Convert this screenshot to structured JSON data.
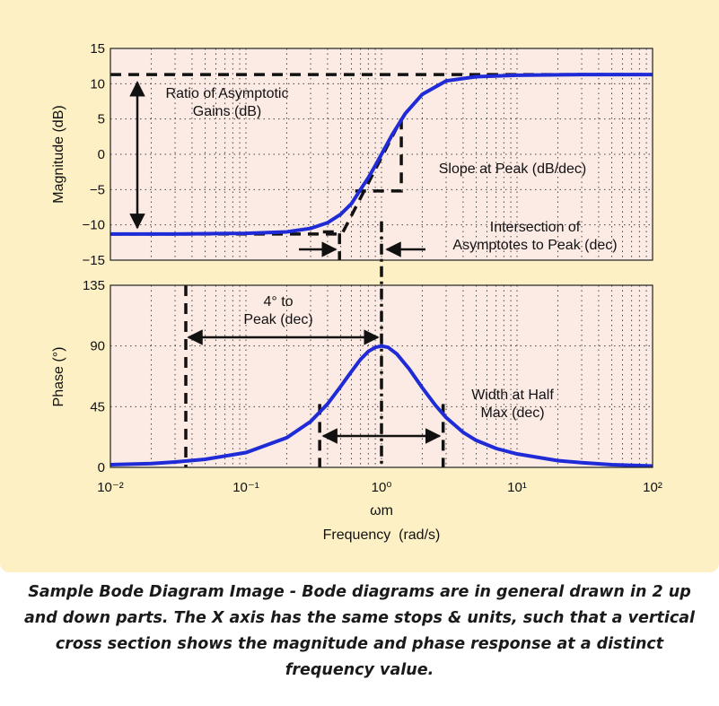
{
  "colors": {
    "panel_background": "#fdf0c4",
    "plot_background": "#fcebe4",
    "curve": "#1f2bd6",
    "asymptote": "#111111"
  },
  "chart_data": [
    {
      "type": "line",
      "panel": "magnitude",
      "xscale": "log",
      "xlim": [
        0.01,
        100
      ],
      "ylim": [
        -15,
        15
      ],
      "yticks": [
        15,
        10,
        5,
        0,
        -5,
        -10,
        -15
      ],
      "ytick_labels": [
        "15",
        "10",
        "5",
        "0",
        "−5",
        "−10",
        "−15"
      ],
      "ylabel": "Magnitude (dB)",
      "grid": true,
      "curve": {
        "x": [
          0.01,
          0.03,
          0.1,
          0.2,
          0.3,
          0.4,
          0.5,
          0.6,
          0.7,
          0.8,
          0.9,
          1.0,
          1.2,
          1.5,
          2,
          3,
          5,
          10,
          30,
          100
        ],
        "y": [
          -11.3,
          -11.3,
          -11.2,
          -11.0,
          -10.5,
          -9.7,
          -8.5,
          -7.0,
          -5.0,
          -3.3,
          -1.6,
          0,
          2.8,
          5.8,
          8.5,
          10.4,
          11.0,
          11.2,
          11.3,
          11.3
        ]
      },
      "asymptotes": {
        "low_level": -11.3,
        "high_level": 11.3,
        "slope_segment": {
          "x": [
            0.52,
            1.4
          ],
          "y": [
            -11.0,
            5.0
          ]
        }
      },
      "annotations": {
        "ratio": "Ratio of Asymptotic\nGains (dB)",
        "slope": "Slope at Peak (dB/dec)",
        "intersection": "Intersection of\nAsymptotes to Peak (dec)"
      }
    },
    {
      "type": "line",
      "panel": "phase",
      "xscale": "log",
      "xlim": [
        0.01,
        100
      ],
      "ylim": [
        0,
        135
      ],
      "yticks": [
        135,
        90,
        45,
        0
      ],
      "ytick_labels": [
        "135",
        "90",
        "45",
        "0"
      ],
      "ylabel": "Phase (°)",
      "xlabel": "Frequency  (rad/s)",
      "xticks": [
        "10⁻²",
        "10⁻¹",
        "10⁰",
        "10¹",
        "10²"
      ],
      "xtick_values": [
        0.01,
        0.1,
        1,
        10,
        100
      ],
      "grid": true,
      "curve": {
        "x": [
          0.01,
          0.02,
          0.03,
          0.05,
          0.1,
          0.2,
          0.3,
          0.4,
          0.5,
          0.6,
          0.7,
          0.8,
          0.9,
          1.0,
          1.12,
          1.3,
          1.6,
          2,
          2.5,
          3,
          4,
          5,
          7,
          10,
          20,
          30,
          50,
          100
        ],
        "y": [
          2,
          2.8,
          4,
          6,
          11,
          22,
          34,
          47,
          60,
          71,
          80,
          86,
          89,
          90,
          89,
          84,
          73,
          59,
          46,
          37,
          26,
          20,
          14,
          10,
          5,
          3.5,
          2,
          1
        ]
      },
      "markers": {
        "four_deg": 0.036,
        "half_low": 0.35,
        "half_high": 2.85,
        "peak": 1.0
      },
      "annotations": {
        "to_peak": "4° to\nPeak (dec)",
        "width": "Width at Half\nMax (dec)",
        "omega_m": "ωm"
      }
    }
  ],
  "caption": "Sample Bode Diagram Image - Bode diagrams are in general drawn in 2 up and down parts. The X axis has the same stops & units, such that a vertical cross section shows the magnitude and phase response at a distinct frequency value."
}
